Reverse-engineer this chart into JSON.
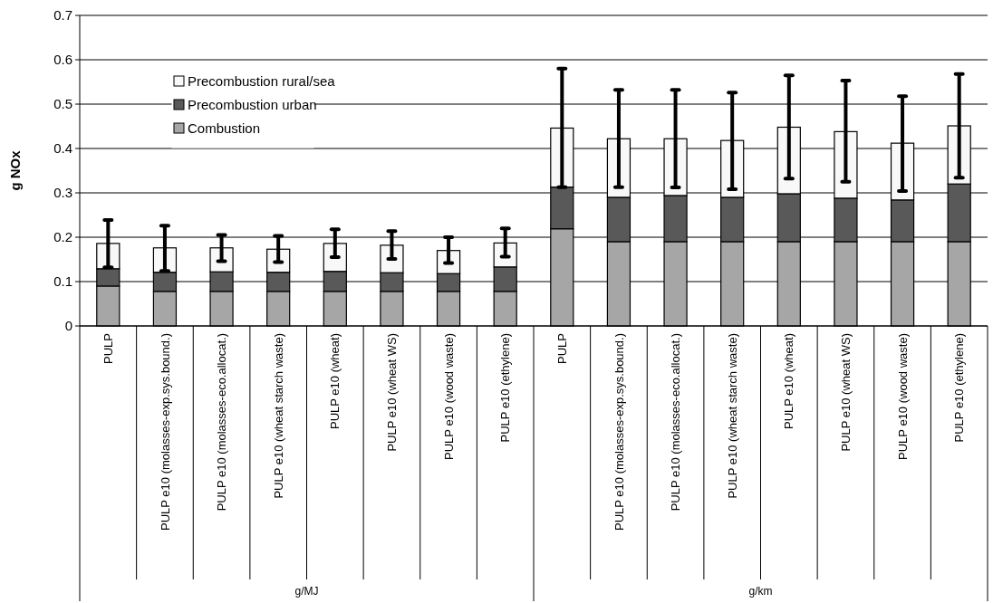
{
  "chart_data": {
    "type": "bar",
    "stacked": true,
    "ylabel": "g NOx",
    "categories": [
      "PULP",
      "PULP e10 (molasses-exp.sys.bound.)",
      "PULP e10 (molasses-eco.allocat.)",
      "PULP e10 (wheat starch waste)",
      "PULP e10 (wheat)",
      "PULP e10 (wheat WS)",
      "PULP e10 (wood waste)",
      "PULP e10 (ethylene)",
      "PULP",
      "PULP e10 (molasses-exp.sys.bound.)",
      "PULP e10 (molasses-eco.allocat.)",
      "PULP e10 (wheat starch waste)",
      "PULP e10 (wheat)",
      "PULP e10 (wheat WS)",
      "PULP e10 (wood waste)",
      "PULP e10 (ethylene)"
    ],
    "series": [
      {
        "name": "Combustion",
        "color": "#a6a6a6",
        "values": [
          0.09,
          0.078,
          0.078,
          0.078,
          0.078,
          0.078,
          0.078,
          0.078,
          0.219,
          0.19,
          0.19,
          0.19,
          0.19,
          0.19,
          0.19,
          0.19
        ]
      },
      {
        "name": "Precombustion urban",
        "color": "#595959",
        "values": [
          0.039,
          0.043,
          0.044,
          0.043,
          0.045,
          0.042,
          0.04,
          0.055,
          0.094,
          0.1,
          0.104,
          0.1,
          0.108,
          0.098,
          0.094,
          0.13
        ]
      },
      {
        "name": "Precombustion rural/sea",
        "color": "#f8f8f8",
        "values": [
          0.057,
          0.055,
          0.054,
          0.052,
          0.063,
          0.062,
          0.052,
          0.054,
          0.133,
          0.132,
          0.128,
          0.128,
          0.15,
          0.15,
          0.128,
          0.131
        ],
        "errors": [
          [
            0.132,
            0.239
          ],
          [
            0.124,
            0.226
          ],
          [
            0.146,
            0.205
          ],
          [
            0.144,
            0.203
          ],
          [
            0.155,
            0.218
          ],
          [
            0.151,
            0.214
          ],
          [
            0.142,
            0.2
          ],
          [
            0.156,
            0.22
          ],
          [
            0.313,
            0.58
          ],
          [
            0.313,
            0.532
          ],
          [
            0.312,
            0.532
          ],
          [
            0.308,
            0.526
          ],
          [
            0.332,
            0.565
          ],
          [
            0.325,
            0.553
          ],
          [
            0.304,
            0.518
          ],
          [
            0.334,
            0.568
          ]
        ]
      }
    ],
    "annotations": [
      "g/MJ",
      "g/km"
    ],
    "ylim": [
      0,
      0.7
    ],
    "yticks": [
      0,
      0.1,
      0.2,
      0.3,
      0.4,
      0.5,
      0.6,
      0.7
    ],
    "grid": "y",
    "legend": "top left"
  }
}
